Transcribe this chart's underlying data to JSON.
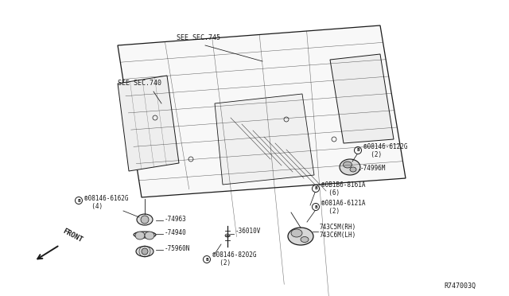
{
  "bg_color": "#ffffff",
  "panel_color": "#f5f5f5",
  "line_color": "#1a1a1a",
  "labels": {
    "see_sec_745": "SEE SEC.745",
    "see_sec_740": "SEE SEC.740",
    "part_08146_6122g_line1": "®08146-6122G",
    "part_08146_6122g_line2": "  (2)",
    "part_74996m": "-74996M",
    "part_08b6_8161a_line1": "®0B1B6-8161A",
    "part_08b6_8161a_line2": "  (6)",
    "part_081a6_6121a_line1": "®081A6-6121A",
    "part_081a6_6121a_line2": "  (2)",
    "part_743c5m": "743C5M(RH)",
    "part_743c6m": "743C6M(LH)",
    "part_08146_6162g_line1": "®08146-6162G",
    "part_08146_6162g_line2": "  (4)",
    "part_74963": "-74963",
    "part_74940": "-74940",
    "part_36010v": "-36010V",
    "part_75960n": "-75960N",
    "part_08146_8202g_line1": "®08146-8202G",
    "part_08146_8202g_line2": "  (2)",
    "front": "FRONT",
    "ref": "R747003Q"
  },
  "fs": 5.5,
  "fs_ref": 6.0,
  "fs_front": 6.5
}
